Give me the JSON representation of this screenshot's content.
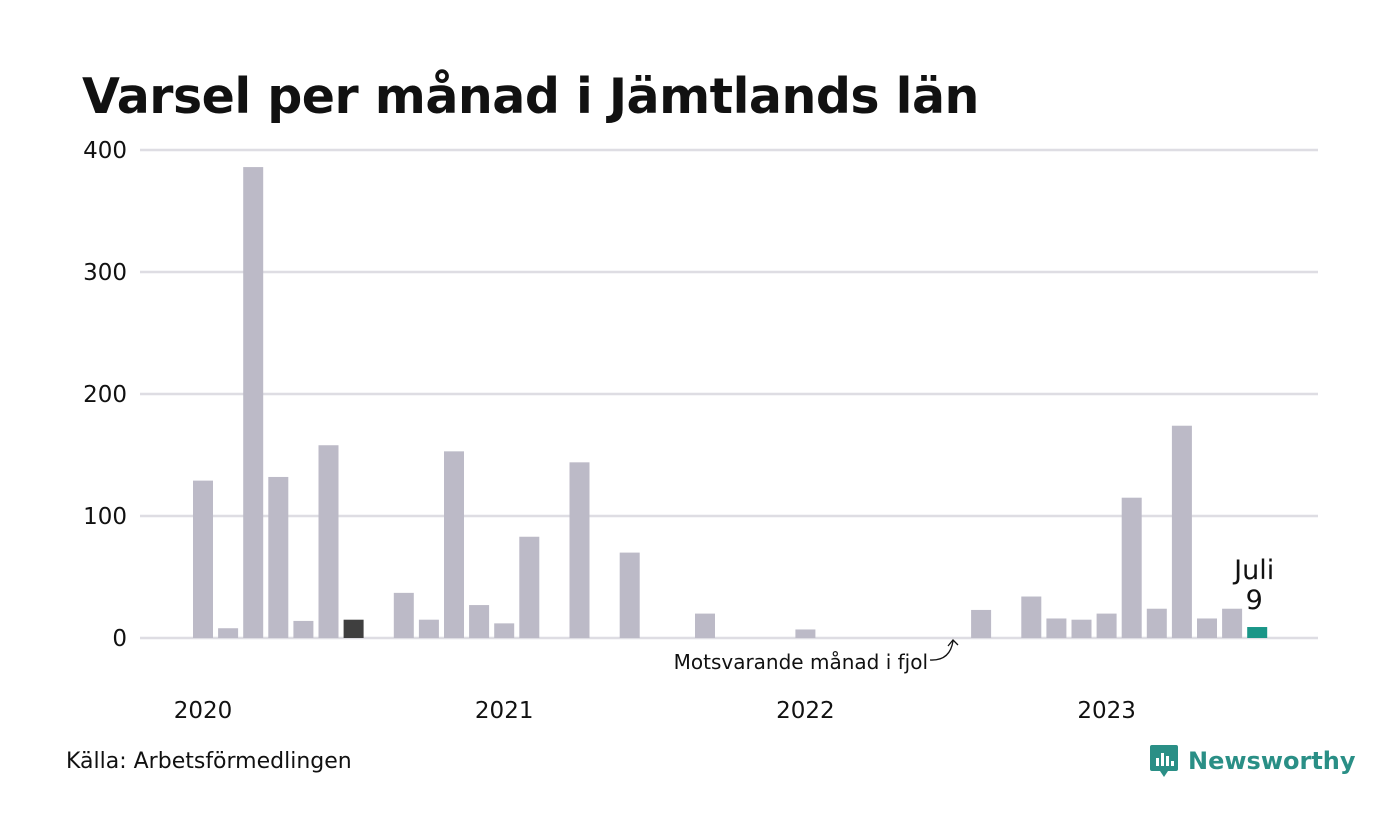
{
  "title": "Varsel per månad i Jämtlands län",
  "source": "Källa: Arbetsförmedlingen",
  "brand": {
    "name": "Newsworthy",
    "icon": "newsworthy-logo-icon",
    "color": "#2a8f86"
  },
  "colors": {
    "bar": "#bcbac7",
    "reference": "#3f3f3f",
    "highlight": "#1a9688",
    "grid": "#dedde3"
  },
  "chart_data": {
    "type": "bar",
    "title": "Varsel per månad i Jämtlands län",
    "xlabel": "",
    "ylabel": "",
    "ylim": [
      0,
      400
    ],
    "yticks": [
      0,
      100,
      200,
      300,
      400
    ],
    "grid": true,
    "year_labels": [
      {
        "label": "2020",
        "month_index": 0
      },
      {
        "label": "2021",
        "month_index": 12
      },
      {
        "label": "2022",
        "month_index": 24
      },
      {
        "label": "2023",
        "month_index": 36
      }
    ],
    "values": [
      129,
      8,
      386,
      132,
      14,
      158,
      15,
      0,
      37,
      15,
      153,
      27,
      12,
      83,
      0,
      144,
      0,
      70,
      0,
      0,
      20,
      0,
      0,
      0,
      7,
      0,
      0,
      0,
      0,
      0,
      0,
      23,
      0,
      34,
      16,
      15,
      20,
      115,
      24,
      174,
      16,
      24,
      9
    ],
    "reference_index": 6,
    "highlight_index": 42,
    "highlight": {
      "month": "Juli",
      "value": "9"
    },
    "annotation": {
      "text": "Motsvarande månad i fjol",
      "target_index": 30
    }
  }
}
